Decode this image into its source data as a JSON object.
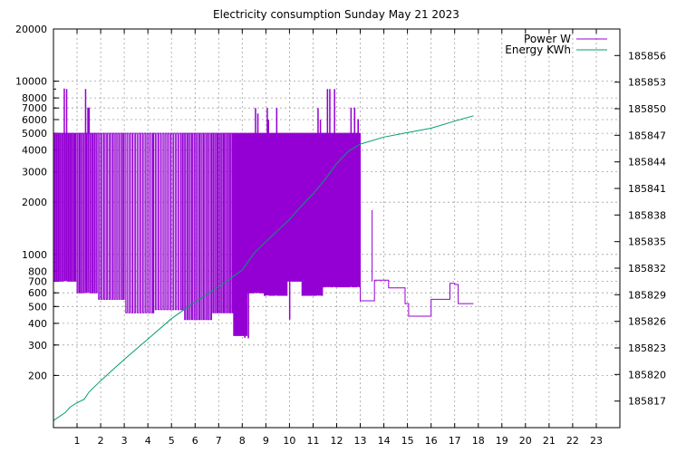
{
  "chart_data": {
    "type": "line",
    "title": "Electricity consumption Sunday May 21 2023",
    "xlabel": "",
    "ylabel": "",
    "y2label": "",
    "xlim": [
      0,
      24
    ],
    "ylim": [
      100,
      20000
    ],
    "y_scale": "log",
    "y2lim": [
      185814,
      185859
    ],
    "grid": true,
    "legend_position": "top-right",
    "x_ticks": [
      1,
      2,
      3,
      4,
      5,
      6,
      7,
      8,
      9,
      10,
      11,
      12,
      13,
      14,
      15,
      16,
      17,
      18,
      19,
      20,
      21,
      22,
      23
    ],
    "x_tick_labels": [
      "1",
      "2",
      "3",
      "4",
      "5",
      "6",
      "7",
      "8",
      "9",
      "10",
      "11",
      "12",
      "13",
      "14",
      "15",
      "16",
      "17",
      "18",
      "19",
      "20",
      "21",
      "22",
      "23"
    ],
    "y_ticks": [
      200,
      300,
      400,
      500,
      600,
      700,
      800,
      1000,
      2000,
      3000,
      4000,
      5000,
      6000,
      7000,
      8000,
      10000,
      20000
    ],
    "y_tick_labels": [
      "200",
      "300",
      "400",
      "500",
      "600",
      "700",
      "800",
      "1000",
      "2000",
      "3000",
      "4000",
      "5000",
      "6000",
      "7000",
      "8000",
      "10000",
      "20000"
    ],
    "y2_ticks": [
      185817,
      185820,
      185823,
      185826,
      185829,
      185832,
      185835,
      185838,
      185841,
      185844,
      185847,
      185850,
      185853,
      185856
    ],
    "y2_tick_labels": [
      "185817",
      "185820",
      "185823",
      "185826",
      "185829",
      "185832",
      "185835",
      "185838",
      "185841",
      "185844",
      "185847",
      "185850",
      "185853",
      "185856"
    ],
    "series": [
      {
        "name": "Power W",
        "axis": "left",
        "color": "#9400d3",
        "cycle_spans": [
          {
            "x0": 0.0,
            "x1": 0.95,
            "period": 0.08,
            "high": 5000,
            "low": 700
          },
          {
            "x0": 0.95,
            "x1": 1.85,
            "period": 0.09,
            "high": 5000,
            "low": 600
          },
          {
            "x0": 1.85,
            "x1": 3.0,
            "period": 0.11,
            "high": 5000,
            "low": 550
          },
          {
            "x0": 3.0,
            "x1": 4.25,
            "period": 0.12,
            "high": 5000,
            "low": 460
          },
          {
            "x0": 4.25,
            "x1": 5.5,
            "period": 0.12,
            "high": 5000,
            "low": 480
          },
          {
            "x0": 5.5,
            "x1": 6.7,
            "period": 0.1,
            "high": 5000,
            "low": 420
          },
          {
            "x0": 6.7,
            "x1": 7.6,
            "period": 0.09,
            "high": 5000,
            "low": 460
          },
          {
            "x0": 7.6,
            "x1": 8.2,
            "period": 0.06,
            "high": 5000,
            "low": 340
          },
          {
            "x0": 8.2,
            "x1": 8.9,
            "period": 0.05,
            "high": 5000,
            "low": 600
          },
          {
            "x0": 8.9,
            "x1": 9.9,
            "period": 0.05,
            "high": 5000,
            "low": 580
          },
          {
            "x0": 9.9,
            "x1": 10.5,
            "period": 0.05,
            "high": 5000,
            "low": 700
          },
          {
            "x0": 10.5,
            "x1": 11.4,
            "period": 0.05,
            "high": 5000,
            "low": 580
          },
          {
            "x0": 11.4,
            "x1": 12.2,
            "period": 0.05,
            "high": 5000,
            "low": 650
          },
          {
            "x0": 12.2,
            "x1": 13.0,
            "period": 0.06,
            "high": 5000,
            "low": 650
          }
        ],
        "spikes": [
          {
            "x": 0.45,
            "y": 9000
          },
          {
            "x": 0.55,
            "y": 9000
          },
          {
            "x": 1.35,
            "y": 9000
          },
          {
            "x": 1.45,
            "y": 7000
          },
          {
            "x": 1.5,
            "y": 7000
          },
          {
            "x": 8.55,
            "y": 7000
          },
          {
            "x": 8.65,
            "y": 6500
          },
          {
            "x": 8.7,
            "y": 4500
          },
          {
            "x": 9.05,
            "y": 7000
          },
          {
            "x": 9.1,
            "y": 6000
          },
          {
            "x": 9.45,
            "y": 7000
          },
          {
            "x": 11.2,
            "y": 7000
          },
          {
            "x": 11.3,
            "y": 6000
          },
          {
            "x": 11.6,
            "y": 9000
          },
          {
            "x": 11.7,
            "y": 9000
          },
          {
            "x": 11.9,
            "y": 9000
          },
          {
            "x": 12.6,
            "y": 7000
          },
          {
            "x": 12.75,
            "y": 7000
          },
          {
            "x": 12.9,
            "y": 6000
          },
          {
            "x": 8.25,
            "y": 330
          },
          {
            "x": 8.1,
            "y": 330
          },
          {
            "x": 7.9,
            "y": 340
          },
          {
            "x": 10.0,
            "y": 420
          }
        ],
        "tail": [
          [
            13.0,
            540
          ],
          [
            13.6,
            540
          ],
          [
            13.6,
            710
          ],
          [
            14.2,
            710
          ],
          [
            14.2,
            640
          ],
          [
            14.9,
            640
          ],
          [
            14.9,
            520
          ],
          [
            15.05,
            520
          ],
          [
            15.05,
            440
          ],
          [
            16.0,
            440
          ],
          [
            16.0,
            550
          ],
          [
            16.8,
            550
          ],
          [
            16.8,
            680
          ],
          [
            17.0,
            680
          ],
          [
            17.0,
            670
          ],
          [
            17.15,
            670
          ],
          [
            17.15,
            520
          ],
          [
            17.8,
            520
          ]
        ],
        "tail_spike": {
          "x": 13.5,
          "y": 1800
        }
      },
      {
        "name": "Energy KWh",
        "axis": "right",
        "color": "#009e73",
        "x": [
          0.0,
          0.5,
          0.7,
          1.0,
          1.3,
          1.5,
          2.0,
          3.0,
          4.0,
          5.0,
          6.0,
          7.0,
          8.0,
          8.5,
          9.0,
          10.0,
          10.5,
          11.0,
          11.5,
          12.0,
          12.5,
          13.0,
          14.0,
          15.0,
          16.0,
          17.0,
          17.8
        ],
        "values": [
          185814.8,
          185815.7,
          185816.3,
          185816.8,
          185817.2,
          185818.0,
          185819.3,
          185821.7,
          185824.0,
          185826.3,
          185828.2,
          185829.9,
          185831.8,
          185833.7,
          185835.0,
          185837.5,
          185839.0,
          185840.4,
          185842.0,
          185843.8,
          185845.2,
          185846.0,
          185846.8,
          185847.3,
          185847.8,
          185848.6,
          185849.2
        ]
      }
    ]
  }
}
